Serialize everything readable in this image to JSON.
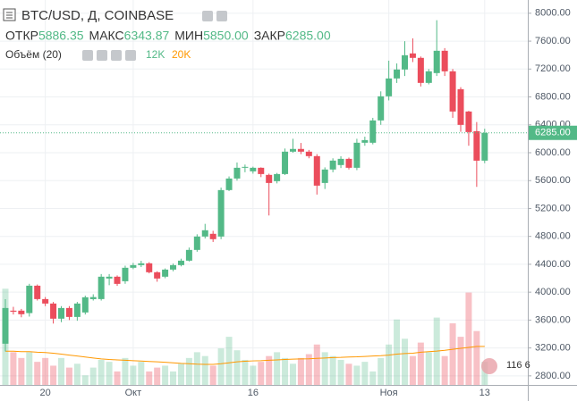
{
  "chart_data": {
    "type": "candlestick",
    "title": "BTC/USD, Д, COINBASE",
    "ohlc_legend": [
      {
        "label": "ОТКР",
        "value": "5886.35"
      },
      {
        "label": "МАКС",
        "value": "6343.87"
      },
      {
        "label": "МИН",
        "value": "5850.00"
      },
      {
        "label": "ЗАКР",
        "value": "6285.00"
      }
    ],
    "volume_legend": {
      "label": "Объём (20)",
      "volume": "12K",
      "ma": "20K"
    },
    "last_price_label": "6285.00",
    "badge": "116 6",
    "categories": [
      null,
      null,
      null,
      null,
      null,
      "20",
      null,
      null,
      null,
      null,
      null,
      null,
      null,
      null,
      null,
      null,
      "Окт",
      null,
      null,
      null,
      null,
      null,
      null,
      null,
      null,
      null,
      null,
      null,
      null,
      null,
      null,
      "16",
      null,
      null,
      null,
      null,
      null,
      null,
      null,
      null,
      null,
      null,
      null,
      null,
      null,
      null,
      null,
      null,
      "Ноя",
      null,
      null,
      null,
      null,
      null,
      null,
      null,
      null,
      null,
      null,
      null,
      "13"
    ],
    "open": [
      3261,
      3735,
      3735,
      3700,
      4093,
      3901,
      3837,
      3620,
      3773,
      3645,
      3709,
      3900,
      3901,
      4196,
      4222,
      4157,
      4350,
      4388,
      4414,
      4286,
      4222,
      4324,
      4388,
      4452,
      4606,
      4798,
      4837,
      4798,
      5464,
      5630,
      5784,
      5733,
      5784,
      5682,
      5592,
      5694,
      6015,
      6054,
      6015,
      5951,
      5566,
      5759,
      5823,
      5912,
      5784,
      6143,
      6143,
      6463,
      6809,
      7065,
      7193,
      7424,
      7360,
      7001,
      7142,
      7462,
      7167,
      6911,
      6591,
      6309,
      5886.35
    ],
    "high": [
      3900,
      3790,
      3760,
      4120,
      4110,
      3930,
      3860,
      3800,
      3800,
      3860,
      3950,
      3970,
      4260,
      4260,
      4240,
      4380,
      4420,
      4450,
      4430,
      4300,
      4340,
      4410,
      4480,
      4640,
      4830,
      4980,
      4880,
      5500,
      5660,
      5860,
      5830,
      5800,
      5790,
      5700,
      5710,
      6060,
      6200,
      6140,
      6040,
      5980,
      5790,
      5920,
      5950,
      5930,
      6200,
      6230,
      6500,
      6880,
      7320,
      7280,
      7600,
      7640,
      7380,
      7200,
      7900,
      7500,
      7200,
      6940,
      6600,
      6440,
      6343.87
    ],
    "low": [
      3150,
      3680,
      3640,
      3650,
      3880,
      3800,
      3550,
      3570,
      3600,
      3590,
      3680,
      3880,
      3880,
      4100,
      4090,
      4120,
      4330,
      4360,
      4270,
      4150,
      4200,
      4300,
      4370,
      4440,
      4580,
      4770,
      4720,
      4760,
      5450,
      5600,
      5720,
      5700,
      5650,
      5100,
      5560,
      5680,
      6000,
      5980,
      5920,
      5400,
      5480,
      5720,
      5780,
      5760,
      5750,
      6100,
      6120,
      6400,
      6750,
      7000,
      7100,
      7300,
      6950,
      6980,
      7100,
      7100,
      6500,
      6300,
      6100,
      5510,
      5850
    ],
    "close": [
      3773,
      3720,
      3684,
      4093,
      3901,
      3837,
      3620,
      3773,
      3645,
      3837,
      3927,
      3930,
      4222,
      4222,
      4119,
      4350,
      4388,
      4414,
      4286,
      4196,
      4324,
      4388,
      4452,
      4606,
      4798,
      4888,
      4760,
      5464,
      5630,
      5784,
      5797,
      5784,
      5694,
      5566,
      5694,
      6015,
      6054,
      6015,
      5951,
      5528,
      5759,
      5887,
      5912,
      5784,
      6143,
      6181,
      6463,
      6809,
      7065,
      7193,
      7398,
      7360,
      7001,
      7167,
      7462,
      7167,
      6591,
      6399,
      6296,
      5886,
      6285
    ],
    "volume": [
      50,
      17,
      14,
      17,
      12,
      14,
      10,
      14,
      9,
      11,
      5,
      9,
      13,
      12,
      7,
      14,
      10,
      12,
      7,
      9,
      10,
      7,
      11,
      14,
      17,
      15,
      10,
      19,
      25,
      18,
      13,
      10,
      12,
      15,
      17,
      14,
      11,
      14,
      16,
      21,
      17,
      15,
      13,
      11,
      10,
      12,
      7,
      14,
      21,
      34,
      24,
      15,
      22,
      17,
      35,
      15,
      32,
      25,
      48,
      28,
      12
    ],
    "volume_ma": [
      17.5,
      17.5,
      17.3,
      17.3,
      17,
      16.8,
      16.5,
      16,
      15.5,
      15,
      14.5,
      14,
      13.5,
      13.2,
      13,
      12.8,
      12.6,
      12.4,
      12.2,
      12,
      11.8,
      11.5,
      11.2,
      11,
      10.8,
      10.7,
      10.7,
      11,
      11.5,
      12,
      12.3,
      12.5,
      12.6,
      12.8,
      13,
      13.2,
      13.4,
      13.5,
      13.6,
      13.8,
      14,
      14.2,
      14.3,
      14.5,
      14.6,
      14.8,
      15,
      15.2,
      15.5,
      16,
      16.3,
      16.5,
      17,
      17.3,
      17.6,
      18,
      18.5,
      19,
      19.5,
      20,
      20
    ],
    "volume_ylim": [
      0,
      200
    ],
    "ylim": [
      2670,
      8190
    ],
    "yticks": [
      {
        "value": 2800,
        "label": "2800.00"
      },
      {
        "value": 3200,
        "label": "3200.00"
      },
      {
        "value": 3600,
        "label": "3600.00"
      },
      {
        "value": 4000,
        "label": "4000.00"
      },
      {
        "value": 4400,
        "label": "4400.00"
      },
      {
        "value": 4800,
        "label": "4800.00"
      },
      {
        "value": 5200,
        "label": "5200.00"
      },
      {
        "value": 5600,
        "label": "5600.00"
      },
      {
        "value": 6000,
        "label": "6000.00"
      },
      {
        "value": 6400,
        "label": "6400.00"
      },
      {
        "value": 6800,
        "label": "6800.00"
      },
      {
        "value": 7200,
        "label": "7200.00"
      },
      {
        "value": 7600,
        "label": "7600.00"
      },
      {
        "value": 8000,
        "label": "8000.00"
      }
    ],
    "up_color": "#53b987",
    "down_color": "#eb4d5c",
    "ma_color": "#ff9800",
    "grid": true
  }
}
